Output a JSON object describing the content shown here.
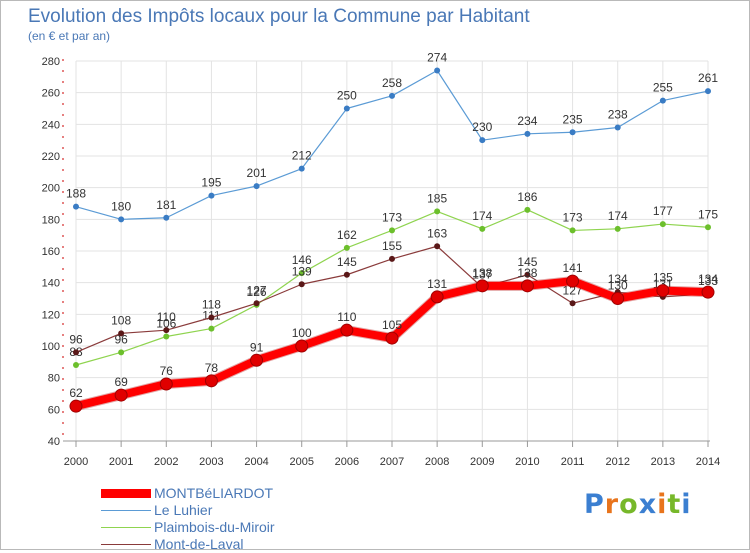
{
  "title": "Evolution des Impôts locaux pour la Commune par Habitant",
  "subtitle": "(en € et par an)",
  "logo": {
    "letters": [
      "P",
      "r",
      "o",
      "x",
      "i",
      "t",
      "i"
    ],
    "colors": [
      "#3b7fd1",
      "#e8741c",
      "#77b82a",
      "#3b7fd1",
      "#e8741c",
      "#77b82a",
      "#3b7fd1"
    ]
  },
  "chart_data": {
    "type": "line",
    "title": "Evolution des Impôts locaux pour la Commune par Habitant",
    "subtitle": "(en € et par an)",
    "x": [
      "2000",
      "2001",
      "2002",
      "2003",
      "2004",
      "2005",
      "2006",
      "2007",
      "2008",
      "2009",
      "2010",
      "2011",
      "2012",
      "2013",
      "2014"
    ],
    "ylim": [
      40,
      280
    ],
    "yticks": [
      40,
      60,
      80,
      100,
      120,
      140,
      160,
      180,
      200,
      220,
      240,
      260,
      280
    ],
    "grid": true,
    "legend_position": "bottom-left",
    "series": [
      {
        "name": "Le Luhier",
        "color": "#5b9bd5",
        "marker": "#3a7cc4",
        "width": 1.2,
        "values": [
          188,
          180,
          181,
          195,
          201,
          212,
          250,
          258,
          274,
          230,
          234,
          235,
          238,
          255,
          261
        ]
      },
      {
        "name": "Plaimbois-du-Miroir",
        "color": "#8fd44f",
        "marker": "#6cbf2c",
        "width": 1.2,
        "values": [
          88,
          96,
          106,
          111,
          126,
          146,
          162,
          173,
          185,
          174,
          186,
          173,
          174,
          177,
          175
        ]
      },
      {
        "name": "Mont-de-Laval",
        "color": "#8a3b3b",
        "marker": "#5a1818",
        "width": 1.2,
        "values": [
          96,
          108,
          110,
          118,
          127,
          139,
          145,
          155,
          163,
          137,
          145,
          127,
          134,
          131,
          133
        ]
      },
      {
        "name": "MONTBéLIARDOT",
        "color": "#ff0000",
        "marker": "#e00000",
        "width": 8,
        "values": [
          62,
          69,
          76,
          78,
          91,
          100,
          110,
          105,
          131,
          138,
          138,
          141,
          130,
          135,
          134
        ]
      }
    ],
    "legend_order": [
      "MONTBéLIARDOT",
      "Le Luhier",
      "Plaimbois-du-Miroir",
      "Mont-de-Laval"
    ]
  }
}
